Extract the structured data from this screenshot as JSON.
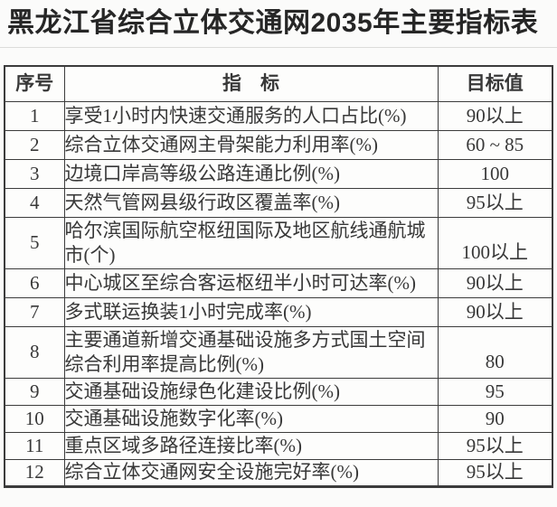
{
  "title": "黑龙江省综合立体交通网2035年主要指标表",
  "table": {
    "headers": {
      "no": "序号",
      "indicator": "指　标",
      "target": "目标值"
    },
    "rows": [
      {
        "no": "1",
        "indicator": "享受1小时内快速交通服务的人口占比(%)",
        "target": "90以上"
      },
      {
        "no": "2",
        "indicator": "综合立体交通网主骨架能力利用率(%)",
        "target": "60 ~ 85"
      },
      {
        "no": "3",
        "indicator": "边境口岸高等级公路连通比例(%)",
        "target": "100"
      },
      {
        "no": "4",
        "indicator": "天然气管网县级行政区覆盖率(%)",
        "target": "95以上"
      },
      {
        "no": "5",
        "indicator": "哈尔滨国际航空枢纽国际及地区航线通航城市(个)",
        "target": "100以上"
      },
      {
        "no": "6",
        "indicator": "中心城区至综合客运枢纽半小时可达率(%)",
        "target": "90以上"
      },
      {
        "no": "7",
        "indicator": "多式联运换装1小时完成率(%)",
        "target": "90以上"
      },
      {
        "no": "8",
        "indicator": "主要通道新增交通基础设施多方式国土空间综合利用率提高比例(%)",
        "target": "80"
      },
      {
        "no": "9",
        "indicator": "交通基础设施绿色化建设比例(%)",
        "target": "95"
      },
      {
        "no": "10",
        "indicator": "交通基础设施数字化率(%)",
        "target": "90"
      },
      {
        "no": "11",
        "indicator": "重点区域多路径连接比率(%)",
        "target": "95以上"
      },
      {
        "no": "12",
        "indicator": "综合立体交通网安全设施完好率(%)",
        "target": "95以上"
      }
    ]
  }
}
